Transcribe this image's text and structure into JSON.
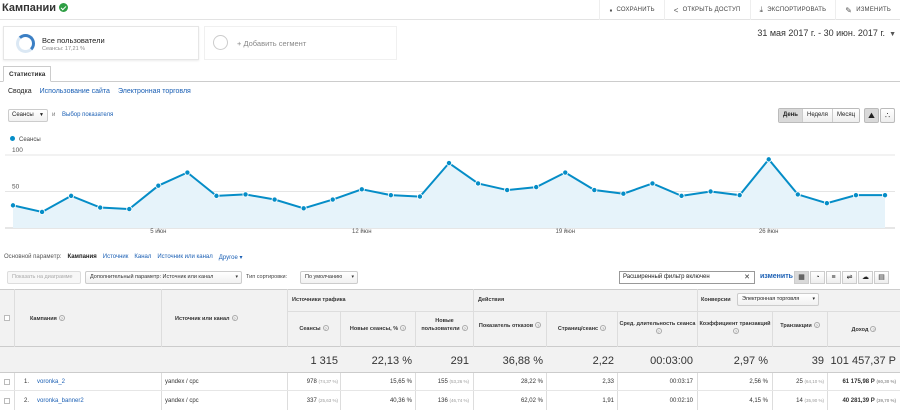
{
  "header": {
    "title": "Кампании",
    "actions": [
      {
        "icon": "save-icon",
        "glyph": "🖫",
        "label": "СОХРАНИТЬ"
      },
      {
        "icon": "share-icon",
        "glyph": "<",
        "label": "ОТКРЫТЬ ДОСТУП"
      },
      {
        "icon": "export-icon",
        "glyph": "⤓",
        "label": "ЭКСПОРТИРОВАТЬ"
      },
      {
        "icon": "edit-icon",
        "glyph": "✎",
        "label": "ИЗМЕНИТЬ"
      }
    ]
  },
  "segments": {
    "primary": {
      "name": "Все пользователи",
      "sub": "Сеансы: 17,21 %"
    },
    "add_label": "+ Добавить сегмент"
  },
  "date_range": "31 мая 2017 г. - 30 июн. 2017 г.",
  "tabs": {
    "main": "Статистика",
    "sub": [
      "Сводка",
      "Использование сайта",
      "Электронная торговля"
    ]
  },
  "chart_controls": {
    "metric": "Сеансы",
    "and_label": "и",
    "pick_metric": "Выбор показателя",
    "periods": [
      "День",
      "Неделя",
      "Месяц"
    ],
    "active_period": "День"
  },
  "chart_data": {
    "type": "area",
    "title": "",
    "series": [
      {
        "name": "Сеансы",
        "color": "#058dc7",
        "values": [
          31,
          22,
          44,
          28,
          26,
          58,
          76,
          44,
          46,
          39,
          27,
          39,
          53,
          45,
          43,
          89,
          61,
          52,
          56,
          76,
          52,
          47,
          61,
          44,
          50,
          45,
          94,
          46,
          34,
          45,
          45
        ]
      }
    ],
    "x_ticks": [
      {
        "index": 5,
        "label": "5 июн"
      },
      {
        "index": 12,
        "label": "12 июн"
      },
      {
        "index": 19,
        "label": "19 июн"
      },
      {
        "index": 26,
        "label": "26 июн"
      }
    ],
    "y_ticks": [
      50,
      100
    ],
    "ylim": [
      0,
      100
    ],
    "grid": true,
    "legend": "top-left"
  },
  "dimension_row": {
    "label": "Основной параметр:",
    "current": "Кампания",
    "links": [
      "Источник",
      "Канал",
      "Источник или канал",
      "Другое ▾"
    ]
  },
  "table_toolbar": {
    "plot_rows": "Показать на диаграмме",
    "secondary_dim": "Дополнительный параметр: Источник или канал",
    "sort_label": "Тип сортировки:",
    "sort_value": "По умолчанию",
    "filter_value": "Расширенный фильтр включен",
    "change_label": "изменить"
  },
  "table": {
    "headers": {
      "campaign": "Кампания",
      "source": "Источник или канал",
      "group_traffic": "Источники трафика",
      "group_actions": "Действия",
      "group_conversions": "Конверсии",
      "conversions_select": "Электронная торговля",
      "sessions": "Сеансы",
      "new_sessions": "Новые сеансы, %",
      "new_users": "Новые пользователи",
      "bounce": "Показатель отказов",
      "pages": "Страниц/сеанс",
      "duration": "Сред. длительность сеанса",
      "conv_rate": "Коэффициент транзакций",
      "transactions": "Транзакции",
      "revenue": "Доход"
    },
    "totals": {
      "sessions": "1 315",
      "new_sessions": "22,13 %",
      "new_users": "291",
      "bounce": "36,88 %",
      "pages": "2,22",
      "duration": "00:03:00",
      "conv_rate": "2,97 %",
      "transactions": "39",
      "revenue": "101 457,37 Р"
    },
    "rows": [
      {
        "num": "1.",
        "campaign": "voronka_2",
        "source": "yandex / cpc",
        "sessions": "978",
        "sessions_pct": "(74,37 %)",
        "new_sessions": "15,65 %",
        "new_users": "155",
        "new_users_pct": "(53,26 %)",
        "bounce": "28,22 %",
        "pages": "2,33",
        "duration": "00:03:17",
        "conv_rate": "2,56 %",
        "transactions": "25",
        "transactions_pct": "(64,10 %)",
        "revenue": "61 175,98 Р",
        "revenue_pct": "(60,30 %)"
      },
      {
        "num": "2.",
        "campaign": "voronka_banner2",
        "source": "yandex / cpc",
        "sessions": "337",
        "sessions_pct": "(25,63 %)",
        "new_sessions": "40,36 %",
        "new_users": "136",
        "new_users_pct": "(46,74 %)",
        "bounce": "62,02 %",
        "pages": "1,91",
        "duration": "00:02:10",
        "conv_rate": "4,15 %",
        "transactions": "14",
        "transactions_pct": "(35,90 %)",
        "revenue": "40 281,39 Р",
        "revenue_pct": "(39,70 %)"
      }
    ]
  }
}
